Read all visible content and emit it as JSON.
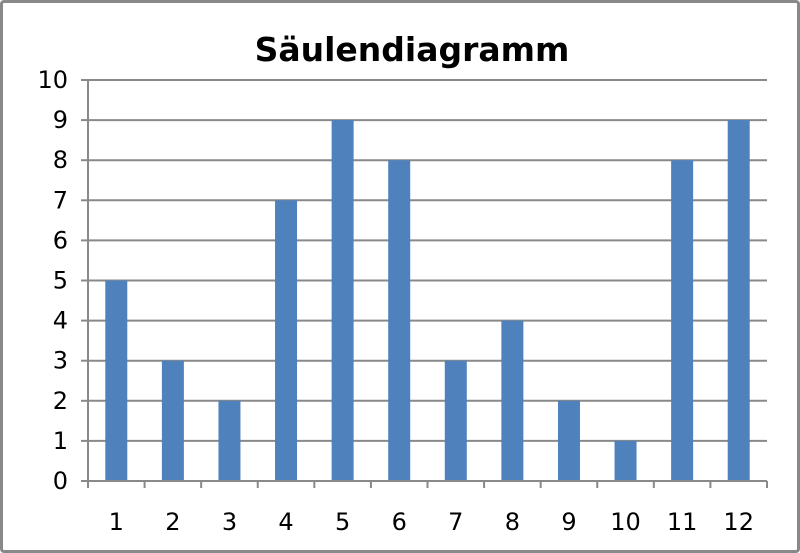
{
  "chart_data": {
    "type": "bar",
    "title": "Säulendiagramm",
    "xlabel": "",
    "ylabel": "",
    "categories": [
      "1",
      "2",
      "3",
      "4",
      "5",
      "6",
      "7",
      "8",
      "9",
      "10",
      "11",
      "12"
    ],
    "values": [
      5,
      3,
      2,
      7,
      9,
      8,
      3,
      4,
      2,
      1,
      8,
      9
    ],
    "ylim": [
      0,
      10
    ],
    "yticks": [
      0,
      1,
      2,
      3,
      4,
      5,
      6,
      7,
      8,
      9,
      10
    ],
    "grid": true,
    "legend": "none",
    "colors": {
      "bar": "#4f81bd",
      "grid": "#898989",
      "frame": "#898989"
    }
  }
}
